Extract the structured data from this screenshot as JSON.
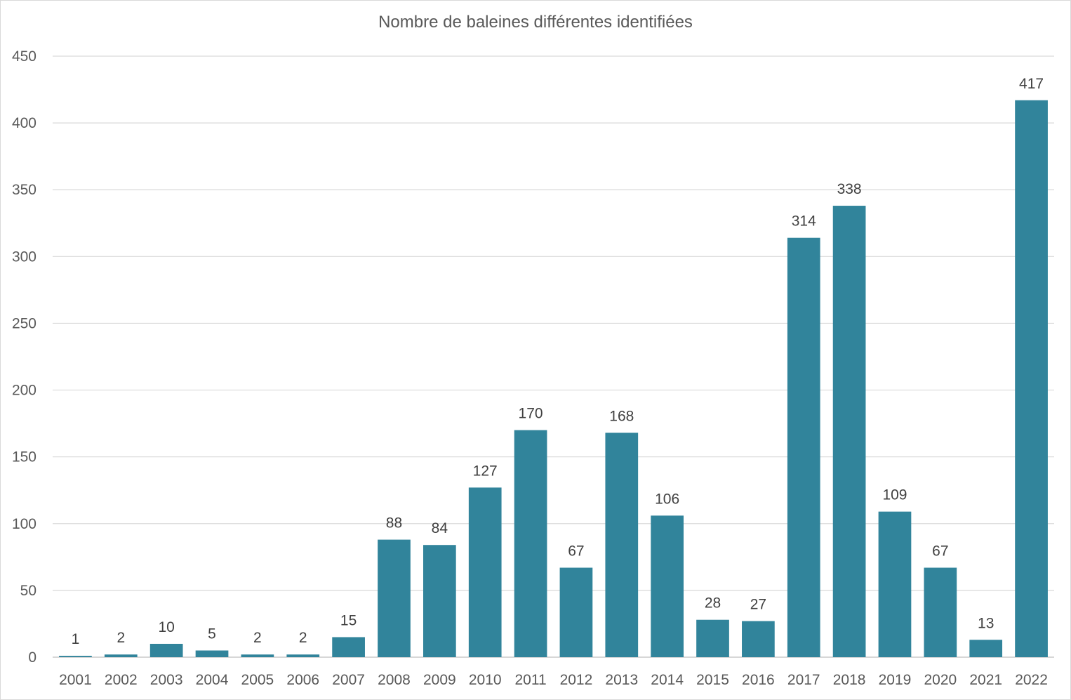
{
  "chart_data": {
    "type": "bar",
    "title": "Nombre de baleines différentes identifiées",
    "xlabel": "",
    "ylabel": "",
    "categories": [
      "2001",
      "2002",
      "2003",
      "2004",
      "2005",
      "2006",
      "2007",
      "2008",
      "2009",
      "2010",
      "2011",
      "2012",
      "2013",
      "2014",
      "2015",
      "2016",
      "2017",
      "2018",
      "2019",
      "2020",
      "2021",
      "2022"
    ],
    "values": [
      1,
      2,
      10,
      5,
      2,
      2,
      15,
      88,
      84,
      127,
      170,
      67,
      168,
      106,
      28,
      27,
      314,
      338,
      109,
      67,
      13,
      417
    ],
    "ylim": [
      0,
      450
    ],
    "yticks": [
      "0",
      "50",
      "100",
      "150",
      "200",
      "250",
      "300",
      "350",
      "400",
      "450"
    ],
    "grid": true,
    "legend": "none",
    "bar_color": "#31849b",
    "data_labels": true
  }
}
